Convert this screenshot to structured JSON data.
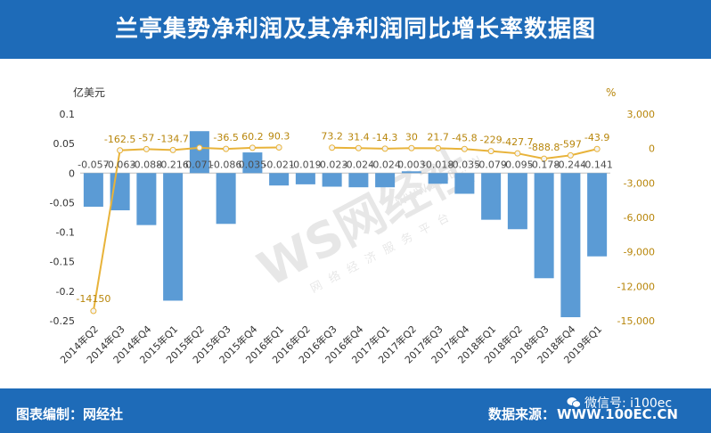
{
  "header": {
    "title": "兰亭集势净利润及其净利润同比增长率数据图"
  },
  "footer": {
    "left_label": "图表编制：网经社",
    "source_label": "数据来源：",
    "source_value": "WWW.100EC.CN",
    "wechat": "微信号: i100ec"
  },
  "watermark": {
    "logo": "WS网经社",
    "url": "WWW.100EC.CN",
    "subtitle": "网络经济服务平台"
  },
  "colors": {
    "header_bg": "#1e6bb8",
    "bar": "#5b9bd5",
    "line": "#e8b33a",
    "line_label": "#b8860b",
    "bar_label": "#4d4d4d"
  },
  "chart_data": {
    "type": "bar",
    "categories": [
      "2014年Q2",
      "2014年Q3",
      "2014年Q4",
      "2015年Q1",
      "2015年Q2",
      "2015年Q3",
      "2015年Q4",
      "2016年Q1",
      "2016年Q2",
      "2016年Q3",
      "2016年Q4",
      "2017年Q1",
      "2017年Q2",
      "2017年Q3",
      "2017年Q4",
      "2018年Q1",
      "2018年Q2",
      "2018年Q3",
      "2018年Q4",
      "2019年Q1"
    ],
    "left_axis": {
      "unit": "亿美元",
      "ylim": [
        -0.25,
        0.1
      ],
      "ticks": [
        "0.1",
        "0.05",
        "0",
        "-0.05",
        "-0.1",
        "-0.15",
        "-0.2",
        "-0.25"
      ]
    },
    "right_axis": {
      "unit": "%",
      "ylim": [
        -15000,
        3000
      ],
      "ticks": [
        "3,000",
        "0",
        "-3,000",
        "-6,000",
        "-9,000",
        "-12,000",
        "-15,000"
      ]
    },
    "series": [
      {
        "type": "bar",
        "axis": "left",
        "values": [
          -0.057,
          -0.063,
          -0.088,
          -0.216,
          0.071,
          -0.086,
          0.035,
          -0.021,
          -0.019,
          -0.023,
          -0.024,
          -0.024,
          0.003,
          -0.018,
          -0.035,
          -0.079,
          -0.095,
          -0.178,
          -0.244,
          -0.141
        ],
        "labels": [
          "-0.057",
          "-0.063",
          "-0.088",
          "-0.216",
          "0.071",
          "-0.086",
          "0.035",
          "-0.021",
          "-0.019",
          "-0.023",
          "-0.024",
          "-0.024",
          "0.003",
          "-0.018",
          "-0.035",
          "-0.079",
          "-0.095",
          "-0.178",
          "-0.244",
          "-0.141"
        ]
      },
      {
        "type": "line",
        "axis": "right",
        "values": [
          -14150,
          -162.5,
          -57,
          -134.7,
          60.2,
          -36.5,
          60.2,
          90.3,
          null,
          73.2,
          31.4,
          -14.3,
          30,
          21.7,
          -45.8,
          -229,
          -427.7,
          -888.8,
          -597,
          -43.9
        ],
        "labels": [
          "-14150",
          "-162.5",
          "-57",
          "-134.7",
          "",
          "-36.5",
          "60.2",
          "90.3",
          "",
          "73.2",
          "31.4",
          "-14.3",
          "30",
          "21.7",
          "-45.8",
          "-229",
          "-427.7",
          "-888.8",
          "-597",
          "-43.9"
        ]
      }
    ],
    "grid": false,
    "legend": "none"
  }
}
